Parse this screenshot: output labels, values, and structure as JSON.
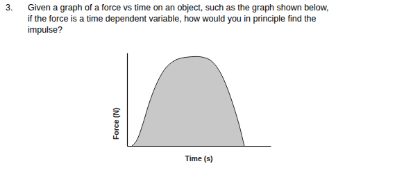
{
  "question": {
    "number": "3.",
    "lines": [
      "Given a graph of a force vs time on an object, such as the graph shown below,",
      "if the force is a time dependent variable, how would you in principle find the",
      "impulse?"
    ]
  },
  "chart_data": {
    "type": "area",
    "x_label": "Time (s)",
    "y_label": "Force (N)",
    "x": [
      0.34,
      0.72,
      1.11,
      1.5,
      1.98,
      2.56,
      3.24,
      4.01,
      4.83,
      5.56,
      6.14,
      6.62,
      7.1,
      7.49,
      7.83,
      8.16
    ],
    "values": [
      0,
      0.73,
      2.4,
      4.4,
      6.4,
      8.1,
      9.1,
      9.5,
      9.6,
      9.4,
      8.7,
      7.5,
      5.7,
      3.9,
      2.1,
      0
    ],
    "color": "#c8c8c8",
    "xlim": [
      0,
      10
    ],
    "ylim": [
      0,
      10
    ],
    "tick_labels": false
  }
}
